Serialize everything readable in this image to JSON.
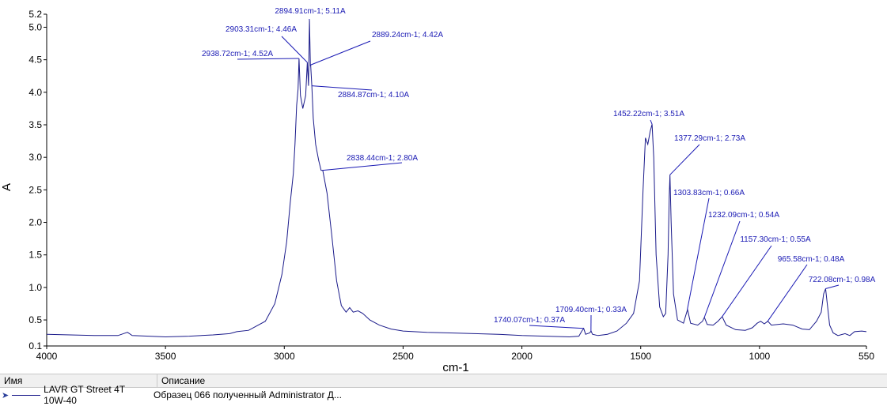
{
  "chart_data": {
    "type": "line",
    "title": "",
    "xlabel": "cm-1",
    "ylabel": "A",
    "xlim": [
      4000,
      550
    ],
    "ylim": [
      0.1,
      5.2
    ],
    "x_ticks": [
      "4000",
      "3500",
      "3000",
      "2500",
      "2000",
      "1500",
      "1000",
      "550"
    ],
    "x_tick_values": [
      4000,
      3500,
      3000,
      2500,
      2000,
      1500,
      1000,
      550
    ],
    "y_ticks": [
      "0.1",
      "0.5",
      "1.0",
      "1.5",
      "2.0",
      "2.5",
      "3.0",
      "3.5",
      "4.0",
      "4.5",
      "5.0",
      "5.2"
    ],
    "y_tick_values": [
      0.1,
      0.5,
      1.0,
      1.5,
      2.0,
      2.5,
      3.0,
      3.5,
      4.0,
      4.5,
      5.0,
      5.2
    ],
    "grid": false,
    "series": [
      {
        "name": "LAVR GT Street 4T 10W-40",
        "color": "#1a1a8a",
        "points": [
          [
            4000,
            0.28
          ],
          [
            3900,
            0.27
          ],
          [
            3800,
            0.26
          ],
          [
            3700,
            0.26
          ],
          [
            3660,
            0.31
          ],
          [
            3640,
            0.26
          ],
          [
            3500,
            0.24
          ],
          [
            3400,
            0.25
          ],
          [
            3300,
            0.27
          ],
          [
            3230,
            0.29
          ],
          [
            3200,
            0.32
          ],
          [
            3150,
            0.34
          ],
          [
            3080,
            0.48
          ],
          [
            3040,
            0.75
          ],
          [
            3010,
            1.2
          ],
          [
            2990,
            1.7
          ],
          [
            2975,
            2.3
          ],
          [
            2962,
            2.75
          ],
          [
            2955,
            3.2
          ],
          [
            2948,
            3.8
          ],
          [
            2942,
            4.05
          ],
          [
            2938,
            4.52
          ],
          [
            2932,
            3.95
          ],
          [
            2922,
            3.75
          ],
          [
            2916,
            3.85
          ],
          [
            2910,
            3.95
          ],
          [
            2903,
            4.46
          ],
          [
            2898,
            4.1
          ],
          [
            2894,
            5.11
          ],
          [
            2890,
            4.4
          ],
          [
            2889,
            4.42
          ],
          [
            2884,
            4.1
          ],
          [
            2878,
            3.6
          ],
          [
            2868,
            3.2
          ],
          [
            2855,
            2.95
          ],
          [
            2845,
            2.8
          ],
          [
            2838,
            2.8
          ],
          [
            2820,
            2.45
          ],
          [
            2800,
            1.8
          ],
          [
            2780,
            1.1
          ],
          [
            2760,
            0.72
          ],
          [
            2740,
            0.62
          ],
          [
            2725,
            0.69
          ],
          [
            2710,
            0.62
          ],
          [
            2690,
            0.64
          ],
          [
            2670,
            0.6
          ],
          [
            2640,
            0.5
          ],
          [
            2600,
            0.42
          ],
          [
            2550,
            0.36
          ],
          [
            2500,
            0.33
          ],
          [
            2400,
            0.31
          ],
          [
            2300,
            0.3
          ],
          [
            2200,
            0.29
          ],
          [
            2100,
            0.28
          ],
          [
            2000,
            0.26
          ],
          [
            1900,
            0.25
          ],
          [
            1800,
            0.24
          ],
          [
            1760,
            0.25
          ],
          [
            1748,
            0.33
          ],
          [
            1740,
            0.37
          ],
          [
            1732,
            0.28
          ],
          [
            1715,
            0.3
          ],
          [
            1709,
            0.33
          ],
          [
            1703,
            0.28
          ],
          [
            1680,
            0.26
          ],
          [
            1640,
            0.28
          ],
          [
            1600,
            0.33
          ],
          [
            1560,
            0.45
          ],
          [
            1530,
            0.6
          ],
          [
            1505,
            1.1
          ],
          [
            1490,
            2.5
          ],
          [
            1480,
            3.3
          ],
          [
            1470,
            3.2
          ],
          [
            1460,
            3.4
          ],
          [
            1452,
            3.51
          ],
          [
            1445,
            3.0
          ],
          [
            1435,
            1.5
          ],
          [
            1420,
            0.7
          ],
          [
            1405,
            0.55
          ],
          [
            1395,
            0.6
          ],
          [
            1385,
            1.5
          ],
          [
            1380,
            2.4
          ],
          [
            1377,
            2.73
          ],
          [
            1372,
            2.0
          ],
          [
            1362,
            0.9
          ],
          [
            1345,
            0.5
          ],
          [
            1320,
            0.45
          ],
          [
            1303,
            0.66
          ],
          [
            1290,
            0.45
          ],
          [
            1260,
            0.42
          ],
          [
            1240,
            0.48
          ],
          [
            1232,
            0.54
          ],
          [
            1220,
            0.43
          ],
          [
            1195,
            0.42
          ],
          [
            1175,
            0.48
          ],
          [
            1157,
            0.55
          ],
          [
            1140,
            0.42
          ],
          [
            1100,
            0.35
          ],
          [
            1060,
            0.34
          ],
          [
            1030,
            0.38
          ],
          [
            1010,
            0.45
          ],
          [
            995,
            0.48
          ],
          [
            980,
            0.44
          ],
          [
            965,
            0.48
          ],
          [
            950,
            0.42
          ],
          [
            900,
            0.44
          ],
          [
            860,
            0.42
          ],
          [
            820,
            0.36
          ],
          [
            790,
            0.35
          ],
          [
            760,
            0.48
          ],
          [
            740,
            0.62
          ],
          [
            730,
            0.9
          ],
          [
            722,
            0.98
          ],
          [
            715,
            0.75
          ],
          [
            705,
            0.42
          ],
          [
            690,
            0.3
          ],
          [
            670,
            0.26
          ],
          [
            640,
            0.29
          ],
          [
            620,
            0.26
          ],
          [
            600,
            0.32
          ],
          [
            570,
            0.33
          ],
          [
            550,
            0.32
          ]
        ]
      }
    ],
    "annotations": [
      {
        "label": "2894.91cm-1; 5.11A",
        "x": 2894.91,
        "y": 5.11
      },
      {
        "label": "2903.31cm-1; 4.46A",
        "x": 2903.31,
        "y": 4.46
      },
      {
        "label": "2889.24cm-1; 4.42A",
        "x": 2889.24,
        "y": 4.42
      },
      {
        "label": "2938.72cm-1; 4.52A",
        "x": 2938.72,
        "y": 4.52
      },
      {
        "label": "2884.87cm-1; 4.10A",
        "x": 2884.87,
        "y": 4.1
      },
      {
        "label": "2838.44cm-1; 2.80A",
        "x": 2838.44,
        "y": 2.8
      },
      {
        "label": "1452.22cm-1; 3.51A",
        "x": 1452.22,
        "y": 3.51
      },
      {
        "label": "1377.29cm-1; 2.73A",
        "x": 1377.29,
        "y": 2.73
      },
      {
        "label": "1303.83cm-1; 0.66A",
        "x": 1303.83,
        "y": 0.66
      },
      {
        "label": "1232.09cm-1; 0.54A",
        "x": 1232.09,
        "y": 0.54
      },
      {
        "label": "1157.30cm-1; 0.55A",
        "x": 1157.3,
        "y": 0.55
      },
      {
        "label": "965.58cm-1; 0.48A",
        "x": 965.58,
        "y": 0.48
      },
      {
        "label": "722.08cm-1; 0.98A",
        "x": 722.08,
        "y": 0.98
      },
      {
        "label": "1709.40cm-1; 0.33A",
        "x": 1709.4,
        "y": 0.33
      },
      {
        "label": "1740.07cm-1; 0.37A",
        "x": 1740.07,
        "y": 0.37
      }
    ]
  },
  "legend": {
    "header_name": "Имя",
    "header_description": "Описание",
    "rows": [
      {
        "name": "LAVR GT Street 4T 10W-40",
        "description": "Образец 066 полученный Administrator Д..."
      }
    ],
    "line_color": "#1a1a8a"
  }
}
